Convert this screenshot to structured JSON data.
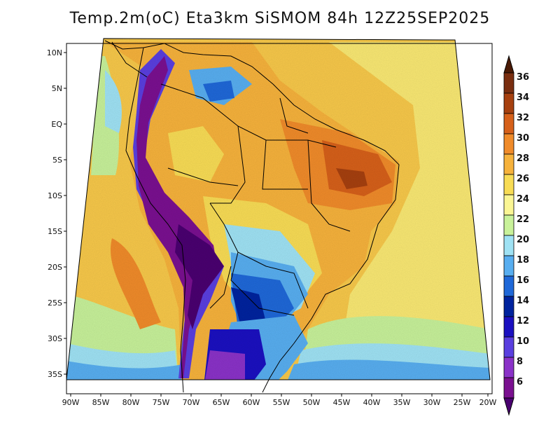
{
  "title": "Temp.2m(oC) Eta3km SiSMOM 84h 12Z25SEP2025",
  "axes": {
    "lat_labels": [
      "10N",
      "5N",
      "EQ",
      "5S",
      "10S",
      "15S",
      "20S",
      "25S",
      "30S",
      "35S"
    ],
    "lon_labels": [
      "90W",
      "85W",
      "80W",
      "75W",
      "70W",
      "65W",
      "60W",
      "55W",
      "50W",
      "45W",
      "40W",
      "35W",
      "30W",
      "25W",
      "20W"
    ]
  },
  "colorbar": {
    "labels": [
      "36",
      "34",
      "32",
      "30",
      "28",
      "26",
      "24",
      "22",
      "20",
      "18",
      "16",
      "14",
      "12",
      "10",
      "8",
      "6"
    ],
    "colors": [
      "#4a1a06",
      "#7a2e10",
      "#a6400f",
      "#d6601a",
      "#f08b2a",
      "#f6b23c",
      "#f8dc55",
      "#fbf694",
      "#c9f29a",
      "#9fe2f4",
      "#58aef0",
      "#1f68d8",
      "#00239e",
      "#1b10c0",
      "#5a3fdf",
      "#8a32c8",
      "#7a1090",
      "#4a0070"
    ]
  },
  "colors": {
    "ocean_warm": "#f7c84a",
    "ocean_mild": "#f9e873",
    "ocean_cool": "#c7f19a",
    "land_hot": "#e06a22",
    "andes": "#7a1090"
  }
}
